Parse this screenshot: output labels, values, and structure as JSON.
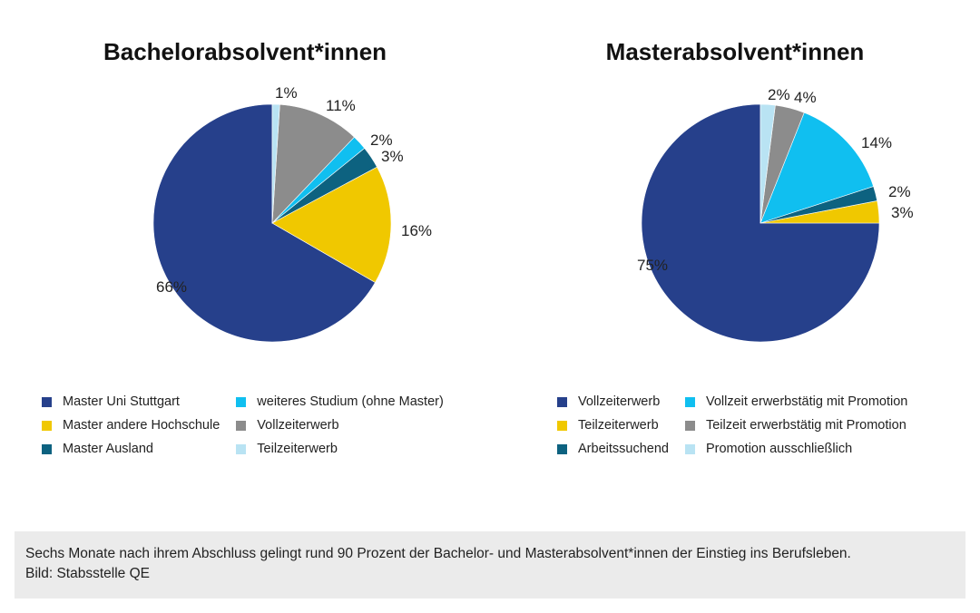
{
  "chart_data": [
    {
      "type": "pie",
      "title": "Bachelorabsolvent*innen",
      "slices": [
        {
          "label": "Master Uni Stuttgart",
          "value": 66,
          "value_label": "66%",
          "color": "#26408b"
        },
        {
          "label": "Master andere Hochschule",
          "value": 16,
          "value_label": "16%",
          "color": "#f0c800"
        },
        {
          "label": "Master Ausland",
          "value": 3,
          "value_label": "3%",
          "color": "#0d6280"
        },
        {
          "label": "weiteres Studium (ohne Master)",
          "value": 2,
          "value_label": "2%",
          "color": "#10bff0"
        },
        {
          "label": "Vollzeiterwerb",
          "value": 11,
          "value_label": "11%",
          "color": "#8c8c8c"
        },
        {
          "label": "Teilzeiterwerb",
          "value": 1,
          "value_label": "1%",
          "color": "#b9e3f3"
        }
      ],
      "legend_order": [
        "Master Uni Stuttgart",
        "weiteres Studium (ohne Master)",
        "Master andere Hochschule",
        "Vollzeiterwerb",
        "Master Ausland",
        "Teilzeiterwerb"
      ],
      "legend_placement": "bottom"
    },
    {
      "type": "pie",
      "title": "Masterabsolvent*innen",
      "slices": [
        {
          "label": "Vollzeiterwerb",
          "value": 75,
          "value_label": "75%",
          "color": "#26408b"
        },
        {
          "label": "Teilzeiterwerb",
          "value": 3,
          "value_label": "3%",
          "color": "#f0c800"
        },
        {
          "label": "Arbeitssuchend",
          "value": 2,
          "value_label": "2%",
          "color": "#0d6280"
        },
        {
          "label": "Vollzeit erwerbstätig mit Promotion",
          "value": 14,
          "value_label": "14%",
          "color": "#10bff0"
        },
        {
          "label": "Teilzeit erwerbstätig mit Promotion",
          "value": 4,
          "value_label": "4%",
          "color": "#8c8c8c"
        },
        {
          "label": "Promotion ausschließlich",
          "value": 2,
          "value_label": "2%",
          "color": "#b9e3f3"
        }
      ],
      "legend_order": [
        "Vollzeiterwerb",
        "Vollzeit erwerbstätig mit Promotion",
        "Teilzeiterwerb",
        "Teilzeit erwerbstätig mit Promotion",
        "Arbeitssuchend",
        "Promotion ausschließlich"
      ],
      "legend_placement": "bottom"
    }
  ],
  "caption": {
    "line1": "Sechs Monate nach ihrem Abschluss gelingt rund 90 Prozent der Bachelor- und Masterabsolvent*innen der Einstieg ins Berufsleben.",
    "line2": "Bild: Stabsstelle QE"
  }
}
